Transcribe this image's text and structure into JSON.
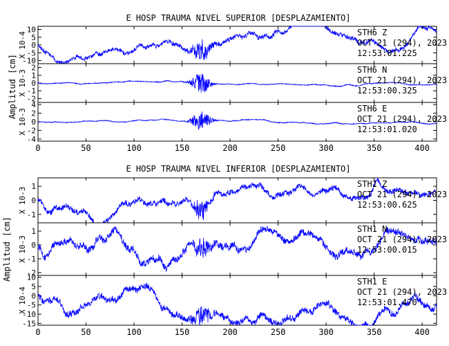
{
  "chart_data": [
    {
      "type": "line",
      "title": "E HOSP TRAUMA NIVEL SUPERIOR [DESPLAZAMIENTO]",
      "ylabel": "Amplitud [cm]",
      "xlim": [
        0,
        415
      ],
      "x_ticks": [
        0,
        50,
        100,
        150,
        200,
        250,
        300,
        350,
        400
      ],
      "series": [
        {
          "scale_label": "X 10-4",
          "yticks": [
            "10",
            "5",
            "0",
            "-5",
            "-10"
          ],
          "ylim": [
            -12,
            12
          ],
          "amp": 0.45,
          "burst": 1.0,
          "annotation": [
            "STH6  Z",
            "OCT 21 (294), 2023",
            "12:53:01.225"
          ],
          "seed": 11
        },
        {
          "scale_label": "X 10-3",
          "yticks": [
            "2",
            "1",
            "0",
            "-1",
            "-2"
          ],
          "ylim": [
            -2.5,
            2.5
          ],
          "amp": 0.08,
          "burst": 0.95,
          "annotation": [
            "STH6  N",
            "OCT 21 (294), 2023",
            "12:53:00.325"
          ],
          "seed": 23
        },
        {
          "scale_label": "X 10-3",
          "yticks": [
            "4",
            "2",
            "0",
            "-2",
            "-4"
          ],
          "ylim": [
            -4.5,
            4.5
          ],
          "amp": 0.08,
          "burst": 0.95,
          "annotation": [
            "STH6  E",
            "OCT 21 (294), 2023",
            "12:53:01.020"
          ],
          "seed": 37
        }
      ]
    },
    {
      "type": "line",
      "title": "E HOSP TRAUMA NIVEL INFERIOR [DESPLAZAMIENTO]",
      "ylabel": "Amplitud [cm]",
      "xlim": [
        0,
        415
      ],
      "x_ticks": [
        0,
        50,
        100,
        150,
        200,
        250,
        300,
        350,
        400
      ],
      "series": [
        {
          "scale_label": "X 10-3",
          "yticks": [
            "1",
            "0",
            "-1"
          ],
          "ylim": [
            -1.6,
            1.6
          ],
          "amp": 0.45,
          "burst": 0.7,
          "annotation": [
            "STH1  Z",
            "OCT 21 (294), 2023",
            "12:53:00.625"
          ],
          "seed": 51
        },
        {
          "scale_label": "X 10-3",
          "yticks": [
            "1",
            "0",
            "-1",
            "-2"
          ],
          "ylim": [
            -2.2,
            1.6
          ],
          "amp": 0.5,
          "burst": 0.7,
          "annotation": [
            "STH1  N",
            "OCT 21 (294), 2023",
            "12:53:00.015"
          ],
          "seed": 67
        },
        {
          "scale_label": "X 10-4",
          "yticks": [
            "10",
            "5",
            "0",
            "-5",
            "-10",
            "-15"
          ],
          "ylim": [
            -16,
            11
          ],
          "amp": 0.5,
          "burst": 0.7,
          "annotation": [
            "STH1  E",
            "OCT 21 (294), 2023",
            "12:53:01.470"
          ],
          "seed": 83
        }
      ]
    }
  ]
}
